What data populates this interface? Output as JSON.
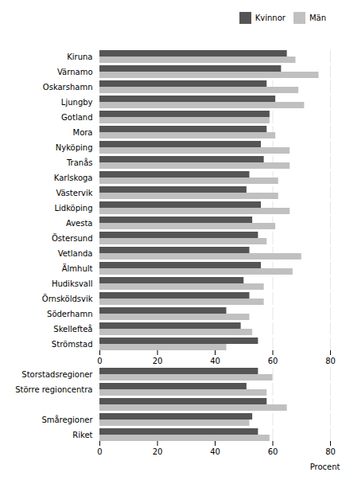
{
  "chart_data": {
    "type": "bar",
    "orientation": "horizontal",
    "categories": [
      "Kiruna",
      "Värnamo",
      "Oskarshamn",
      "Ljungby",
      "Gotland",
      "Mora",
      "Nyköping",
      "Tranås",
      "Karlskoga",
      "Västervik",
      "Lidköping",
      "Avesta",
      "Östersund",
      "Vetlanda",
      "Älmhult",
      "Hudiksvall",
      "Örnsköldsvik",
      "Söderhamn",
      "Skellefteå",
      "Strömstad",
      null,
      "Storstadsregioner",
      "Större regioncentra",
      null,
      "Småregioner",
      "Riket"
    ],
    "series": [
      {
        "name": "Kvinnor",
        "color": "#555555",
        "values": [
          65,
          63,
          58,
          61,
          59,
          58,
          56,
          57,
          52,
          51,
          56,
          53,
          55,
          52,
          56,
          50,
          52,
          44,
          49,
          55,
          null,
          55,
          51,
          58,
          53,
          55
        ]
      },
      {
        "name": "Män",
        "color": "#c0c0c0",
        "values": [
          68,
          76,
          69,
          71,
          59,
          61,
          66,
          66,
          62,
          62,
          66,
          61,
          58,
          70,
          67,
          57,
          57,
          52,
          53,
          44,
          null,
          60,
          58,
          65,
          52,
          59
        ]
      }
    ],
    "xlabel": "Procent",
    "xlim": [
      0,
      80
    ],
    "xticks": [
      0,
      20,
      40,
      60,
      80
    ],
    "grid": true,
    "legend": "upper right"
  }
}
